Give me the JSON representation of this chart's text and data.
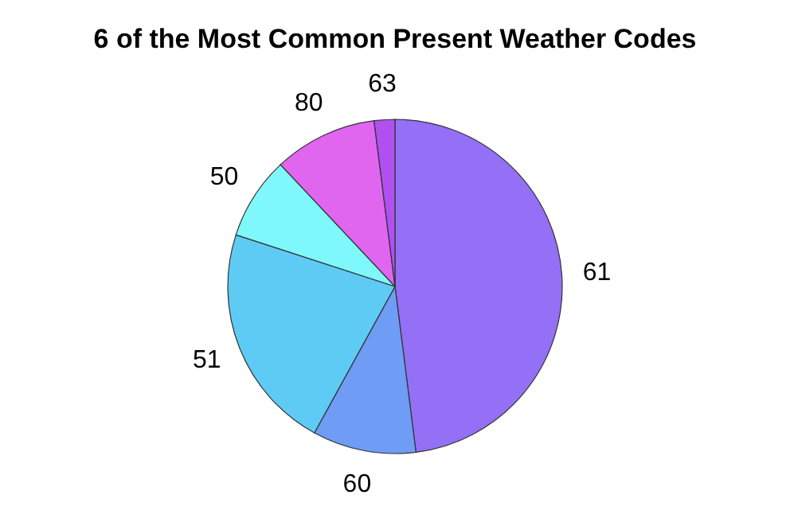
{
  "chart_data": {
    "type": "pie",
    "title": "6 of the Most Common Present Weather Codes",
    "categories": [
      "61",
      "60",
      "51",
      "50",
      "80",
      "63"
    ],
    "values": [
      48,
      10,
      22,
      8,
      10,
      2
    ],
    "colors": [
      "#9370f5",
      "#6f9cf5",
      "#5ecbf5",
      "#7ef8fb",
      "#e066f0",
      "#b050f0"
    ]
  }
}
